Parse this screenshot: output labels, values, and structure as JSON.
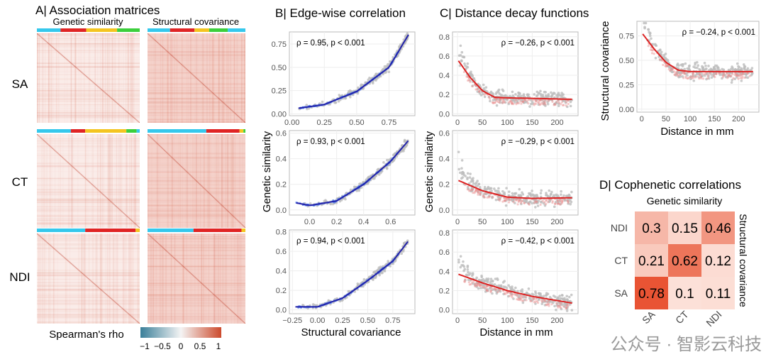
{
  "panel_a": {
    "title": "A| Association matrices",
    "col_labels": [
      "Genetic similarity",
      "Structural covariance"
    ],
    "row_labels": [
      "SA",
      "CT",
      "NDI"
    ],
    "module_colors": [
      "#35c8ec",
      "#e02424",
      "#f4c520",
      "#3ccf3c"
    ],
    "colorbar": {
      "label": "Spearman's rho",
      "ticks": [
        "−1",
        "−0.5",
        "0",
        "0.5",
        "1"
      ],
      "low": "#3a7f99",
      "mid": "#f4f4f4",
      "high": "#cc4a2c"
    }
  },
  "panel_b": {
    "title": "B| Edge-wise correlation",
    "xlabel": "Structural covariance",
    "ylabel": "Genetic similarity"
  },
  "panel_c": {
    "title": "C| Distance decay functions",
    "xlabel": "Distance in mm",
    "ylabel": "Genetic similarity"
  },
  "panel_c_extra": {
    "xlabel": "Distance in mm",
    "ylabel": "Structural covariance"
  },
  "panel_d": {
    "title": "D| Cophenetic correlations",
    "top_label": "Genetic similarity",
    "right_label": "Structural covariance"
  },
  "watermark": "公众号 · 智影云科技",
  "chart_data": [
    {
      "id": "b1",
      "type": "scatter",
      "measure": "SA",
      "annotation": "ρ = 0.95, p < 0.001",
      "xlim": [
        -0.02,
        0.95
      ],
      "ylim": [
        -0.02,
        0.88
      ],
      "xticks": [
        "0.00",
        "0.25",
        "0.50",
        "0.75"
      ],
      "xtickv": [
        0,
        0.25,
        0.5,
        0.75
      ],
      "yticks": [
        "0.00",
        "0.25",
        "0.50",
        "0.75"
      ],
      "ytickv": [
        0,
        0.25,
        0.5,
        0.75
      ],
      "fit": {
        "x": [
          0.05,
          0.25,
          0.5,
          0.75,
          0.9
        ],
        "y": [
          0.06,
          0.1,
          0.24,
          0.5,
          0.85
        ]
      },
      "color": "#2222aa",
      "cloud": "#3a6ef0"
    },
    {
      "id": "b2",
      "type": "scatter",
      "measure": "CT",
      "annotation": "ρ = 0.93, p < 0.001",
      "xlim": [
        -0.15,
        0.78
      ],
      "ylim": [
        -0.04,
        0.62
      ],
      "xticks": [
        "0.0",
        "0.2",
        "0.4",
        "0.6"
      ],
      "xtickv": [
        0,
        0.2,
        0.4,
        0.6
      ],
      "yticks": [
        "0.0",
        "0.2",
        "0.4",
        "0.6"
      ],
      "ytickv": [
        0,
        0.2,
        0.4,
        0.6
      ],
      "fit": {
        "x": [
          -0.1,
          0,
          0.2,
          0.4,
          0.6,
          0.73
        ],
        "y": [
          0.055,
          0.035,
          0.07,
          0.2,
          0.38,
          0.54
        ]
      },
      "color": "#2222aa",
      "cloud": "#3a6ef0"
    },
    {
      "id": "b3",
      "type": "scatter",
      "measure": "NDI",
      "annotation": "ρ = 0.94, p < 0.001",
      "xlim": [
        -0.28,
        0.97
      ],
      "ylim": [
        -0.04,
        0.82
      ],
      "xticks": [
        "−0.25",
        "0.00",
        "0.25",
        "0.50",
        "0.75"
      ],
      "xtickv": [
        -0.25,
        0,
        0.25,
        0.5,
        0.75
      ],
      "yticks": [
        "0.0",
        "0.2",
        "0.4",
        "0.6",
        "0.8"
      ],
      "ytickv": [
        0,
        0.2,
        0.4,
        0.6,
        0.8
      ],
      "fit": {
        "x": [
          -0.22,
          0,
          0.25,
          0.5,
          0.75,
          0.9
        ],
        "y": [
          0.03,
          0.03,
          0.12,
          0.3,
          0.5,
          0.7
        ]
      },
      "color": "#2222aa",
      "cloud": "#3a6ef0"
    },
    {
      "id": "c1",
      "type": "scatter",
      "measure": "SA",
      "annotation": "ρ = −0.26, p < 0.001",
      "xlim": [
        -10,
        242
      ],
      "ylim": [
        -0.02,
        0.85
      ],
      "xticks": [
        "0",
        "50",
        "100",
        "150",
        "200"
      ],
      "xtickv": [
        0,
        50,
        100,
        150,
        200
      ],
      "yticks": [
        "0.0",
        "0.2",
        "0.4",
        "0.6",
        "0.8"
      ],
      "ytickv": [
        0,
        0.2,
        0.4,
        0.6,
        0.8
      ],
      "fit": {
        "x": [
          2,
          25,
          50,
          75,
          100,
          150,
          230
        ],
        "y": [
          0.55,
          0.38,
          0.24,
          0.17,
          0.165,
          0.16,
          0.15
        ]
      },
      "color": "#dd2222",
      "cloud": "#e88a8a"
    },
    {
      "id": "c2",
      "type": "scatter",
      "measure": "CT",
      "annotation": "ρ = −0.29, p < 0.001",
      "xlim": [
        -10,
        242
      ],
      "ylim": [
        -0.04,
        0.62
      ],
      "xticks": [
        "0",
        "50",
        "100",
        "150",
        "200"
      ],
      "xtickv": [
        0,
        50,
        100,
        150,
        200
      ],
      "yticks": [
        "0.0",
        "0.2",
        "0.4",
        "0.6"
      ],
      "ytickv": [
        0,
        0.2,
        0.4,
        0.6
      ],
      "fit": {
        "x": [
          2,
          50,
          100,
          150,
          230
        ],
        "y": [
          0.23,
          0.15,
          0.1,
          0.09,
          0.095
        ]
      },
      "color": "#dd2222",
      "cloud": "#e88a8a"
    },
    {
      "id": "c3",
      "type": "scatter",
      "measure": "NDI",
      "annotation": "ρ = −0.42, p < 0.001",
      "xlim": [
        -10,
        242
      ],
      "ylim": [
        -0.04,
        0.83
      ],
      "xticks": [
        "0",
        "50",
        "100",
        "150",
        "200"
      ],
      "xtickv": [
        0,
        50,
        100,
        150,
        200
      ],
      "yticks": [
        "0.0",
        "0.2",
        "0.4",
        "0.6",
        "0.8"
      ],
      "ytickv": [
        0,
        0.2,
        0.4,
        0.6,
        0.8
      ],
      "fit": {
        "x": [
          2,
          50,
          100,
          150,
          230
        ],
        "y": [
          0.37,
          0.28,
          0.2,
          0.14,
          0.07
        ]
      },
      "color": "#dd2222",
      "cloud": "#e88a8a"
    },
    {
      "id": "c4",
      "type": "scatter",
      "measure": "SA structural covariance",
      "annotation": "ρ = −0.24, p < 0.001",
      "xlim": [
        -10,
        242
      ],
      "ylim": [
        -0.03,
        0.9
      ],
      "xticks": [
        "0",
        "50",
        "100",
        "150",
        "200"
      ],
      "xtickv": [
        0,
        50,
        100,
        150,
        200
      ],
      "yticks": [
        "0.00",
        "0.25",
        "0.50",
        "0.75"
      ],
      "ytickv": [
        0,
        0.25,
        0.5,
        0.75
      ],
      "fit": {
        "x": [
          2,
          25,
          50,
          75,
          100,
          230
        ],
        "y": [
          0.77,
          0.62,
          0.48,
          0.4,
          0.385,
          0.385
        ]
      },
      "color": "#dd2222",
      "cloud": "#e88a8a"
    },
    {
      "id": "d",
      "type": "heatmap",
      "title": "D| Cophenetic correlations",
      "xlabel": "Genetic similarity",
      "ylabel": "Structural covariance",
      "x_categories": [
        "SA",
        "CT",
        "NDI"
      ],
      "y_categories": [
        "NDI",
        "CT",
        "SA"
      ],
      "values": [
        [
          0.3,
          0.15,
          0.46
        ],
        [
          0.21,
          0.62,
          0.12
        ],
        [
          0.78,
          0.1,
          0.11
        ]
      ],
      "labels": [
        [
          "0.3",
          "0.15",
          "0.46"
        ],
        [
          "0.21",
          "0.62",
          "0.12"
        ],
        [
          "0.78",
          "0.1",
          "0.11"
        ]
      ]
    }
  ]
}
